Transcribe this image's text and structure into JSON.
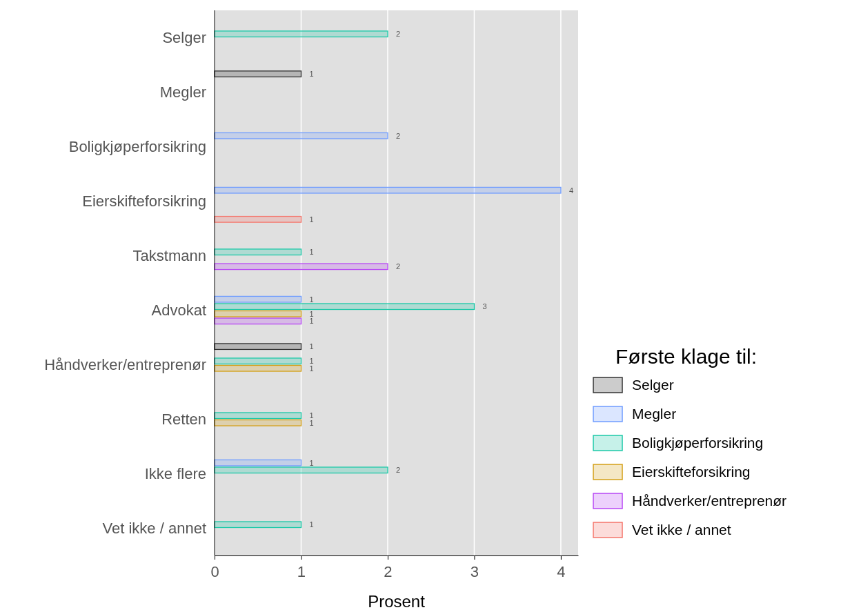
{
  "chart_data": {
    "type": "bar",
    "orientation": "horizontal",
    "xlabel": "Prosent",
    "legend_title": "Første klage til:",
    "legend": "right",
    "grid": "x",
    "data_labels": true,
    "categories": [
      "Selger",
      "Megler",
      "Boligkjøperforsikring",
      "Eierskifteforsikring",
      "Takstmann",
      "Advokat",
      "Håndverker/entreprenør",
      "Retten",
      "Ikke flere",
      "Vet ikke / annet"
    ],
    "xlim": [
      0,
      4.2
    ],
    "xticks": [
      0,
      1,
      2,
      3,
      4
    ],
    "series": [
      {
        "name": "Selger",
        "color": "#333333",
        "values": [
          null,
          1,
          null,
          null,
          null,
          null,
          1,
          null,
          null,
          null
        ]
      },
      {
        "name": "Megler",
        "color": "#6f9cff",
        "values": [
          null,
          null,
          2,
          4,
          null,
          1,
          null,
          null,
          1,
          null
        ]
      },
      {
        "name": "Boligkjøperforsikring",
        "color": "#1cc9a8",
        "values": [
          2,
          null,
          null,
          null,
          1,
          3,
          1,
          1,
          2,
          1
        ]
      },
      {
        "name": "Eierskifteforsikring",
        "color": "#d4a017",
        "values": [
          null,
          null,
          null,
          null,
          null,
          1,
          1,
          1,
          null,
          null
        ]
      },
      {
        "name": "Håndverker/entreprenør",
        "color": "#b847f5",
        "values": [
          null,
          null,
          null,
          null,
          2,
          1,
          null,
          null,
          null,
          null
        ]
      },
      {
        "name": "Vet ikke / annet",
        "color": "#f5756b",
        "values": [
          null,
          null,
          null,
          1,
          null,
          null,
          null,
          null,
          null,
          null
        ]
      }
    ]
  }
}
